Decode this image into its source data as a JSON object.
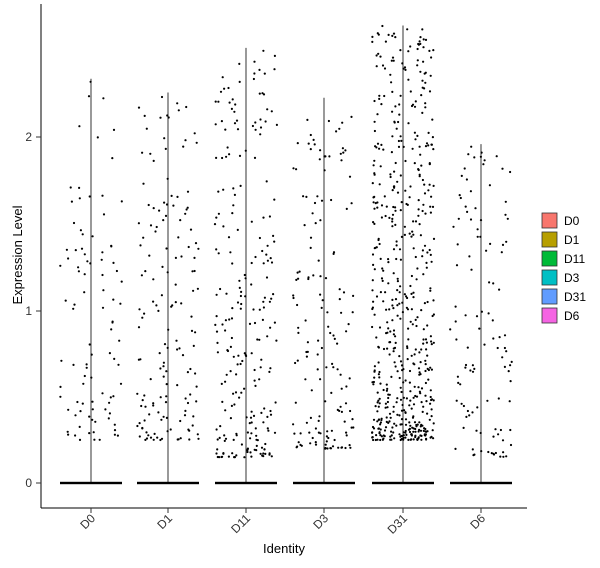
{
  "chart_data": {
    "type": "violin",
    "title": "",
    "xlabel": "Identity",
    "ylabel": "Expression Level",
    "categories": [
      "D0",
      "D1",
      "D11",
      "D3",
      "D31",
      "D6"
    ],
    "ylim": [
      -0.15,
      2.75
    ],
    "yticks": [
      0,
      1,
      2
    ],
    "ytick_labels": [
      "0",
      "1",
      "2"
    ],
    "grid": false,
    "legend_position": "right",
    "series": [
      {
        "name": "D0",
        "color": "#F8766D",
        "max": 2.35,
        "nonzero_range": [
          0.25,
          2.35
        ]
      },
      {
        "name": "D1",
        "color": "#B79F00",
        "max": 2.27,
        "nonzero_range": [
          0.25,
          2.27
        ]
      },
      {
        "name": "D11",
        "color": "#00BA38",
        "max": 2.53,
        "nonzero_range": [
          0.15,
          2.53
        ]
      },
      {
        "name": "D3",
        "color": "#00BFC4",
        "max": 2.24,
        "nonzero_range": [
          0.2,
          2.24
        ]
      },
      {
        "name": "D31",
        "color": "#619CFF",
        "max": 2.66,
        "nonzero_range": [
          0.25,
          2.66
        ]
      },
      {
        "name": "D6",
        "color": "#F564E3",
        "max": 1.97,
        "nonzero_range": [
          0.15,
          1.97
        ]
      }
    ],
    "point_color": "#000000"
  }
}
